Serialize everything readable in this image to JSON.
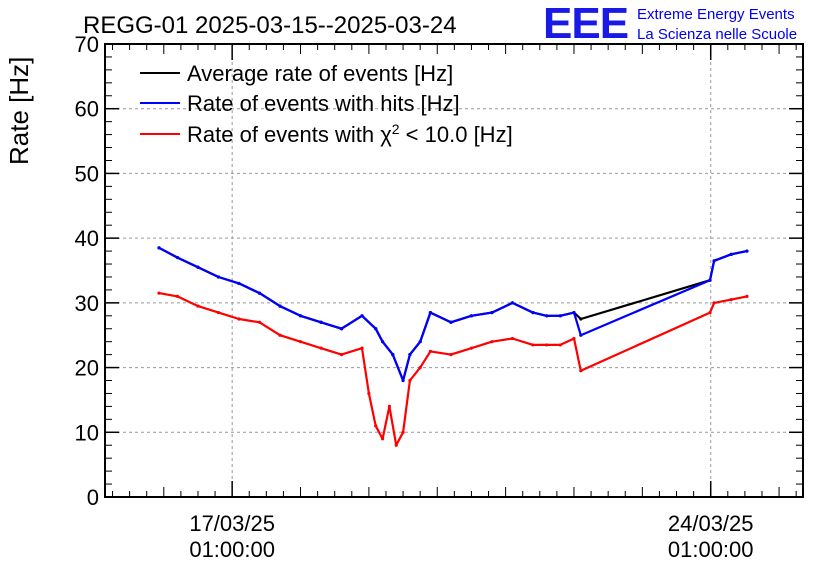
{
  "chart_data": {
    "type": "line",
    "title": "REGG-01 2025-03-15--2025-03-24",
    "logo": {
      "mark": "EEE",
      "line1": "Extreme Energy Events",
      "line2": "La Scienza nelle Scuole"
    },
    "xlabel": "",
    "ylabel": "Rate [Hz]",
    "ylim": [
      0,
      70
    ],
    "yticks": [
      0,
      10,
      20,
      30,
      40,
      50,
      60,
      70
    ],
    "xlim_days": [
      -1.86,
      8.35
    ],
    "xticks": [
      {
        "day": 0.0,
        "date": "17/03/25",
        "time": "01:00:00"
      },
      {
        "day": 7.0,
        "date": "24/03/25",
        "time": "01:00:00"
      }
    ],
    "grid": true,
    "legend_position": "top-left",
    "series": [
      {
        "name": "Average rate of events [Hz]",
        "legend_label": "Average rate of events [Hz]",
        "color": "#000000",
        "x": [
          -1.07,
          -0.8,
          -0.5,
          -0.2,
          0.1,
          0.4,
          0.7,
          1.0,
          1.3,
          1.6,
          1.9,
          2.1,
          2.2,
          2.35,
          2.5,
          2.6,
          2.75,
          2.9,
          3.2,
          3.5,
          3.8,
          4.1,
          4.4,
          4.6,
          4.8,
          5.0,
          5.1,
          6.99,
          7.05,
          7.3,
          7.53
        ],
        "y": [
          38.5,
          37.0,
          35.5,
          34.0,
          33.0,
          31.5,
          29.5,
          28.0,
          27.0,
          26.0,
          28.0,
          26.0,
          24.0,
          22.0,
          18.0,
          22.0,
          24.0,
          28.5,
          27.0,
          28.0,
          28.5,
          30.0,
          28.5,
          28.0,
          28.0,
          28.5,
          27.5,
          33.5,
          36.5,
          37.5,
          38.0
        ]
      },
      {
        "name": "Rate of events with hits [Hz]",
        "legend_label": "Rate of events with hits [Hz]",
        "color": "#0000ff",
        "x": [
          -1.07,
          -0.8,
          -0.5,
          -0.2,
          0.1,
          0.4,
          0.7,
          1.0,
          1.3,
          1.6,
          1.9,
          2.1,
          2.2,
          2.35,
          2.5,
          2.6,
          2.75,
          2.9,
          3.2,
          3.5,
          3.8,
          4.1,
          4.4,
          4.6,
          4.8,
          5.0,
          5.1,
          6.99,
          7.05,
          7.3,
          7.53
        ],
        "y": [
          38.5,
          37.0,
          35.5,
          34.0,
          33.0,
          31.5,
          29.5,
          28.0,
          27.0,
          26.0,
          28.0,
          26.0,
          24.0,
          22.0,
          18.0,
          22.0,
          24.0,
          28.5,
          27.0,
          28.0,
          28.5,
          30.0,
          28.5,
          28.0,
          28.0,
          28.5,
          25.0,
          33.5,
          36.5,
          37.5,
          38.0
        ]
      },
      {
        "name": "Rate of events with chi2 < 10.0 [Hz]",
        "legend_label": "Rate of events with χ",
        "legend_sup": "2",
        "legend_tail": " < 10.0 [Hz]",
        "color": "#ff0000",
        "x": [
          -1.07,
          -0.8,
          -0.5,
          -0.2,
          0.1,
          0.4,
          0.7,
          1.0,
          1.3,
          1.6,
          1.9,
          2.0,
          2.1,
          2.2,
          2.3,
          2.4,
          2.5,
          2.6,
          2.75,
          2.9,
          3.2,
          3.5,
          3.8,
          4.1,
          4.4,
          4.6,
          4.8,
          5.0,
          5.1,
          6.99,
          7.05,
          7.3,
          7.53
        ],
        "y": [
          31.5,
          31.0,
          29.5,
          28.5,
          27.5,
          27.0,
          25.0,
          24.0,
          23.0,
          22.0,
          23.0,
          16.0,
          11.0,
          9.0,
          14.0,
          8.0,
          10.0,
          18.0,
          20.0,
          22.5,
          22.0,
          23.0,
          24.0,
          24.5,
          23.5,
          23.5,
          23.5,
          24.5,
          19.5,
          28.5,
          30.0,
          30.5,
          31.0
        ]
      }
    ]
  }
}
